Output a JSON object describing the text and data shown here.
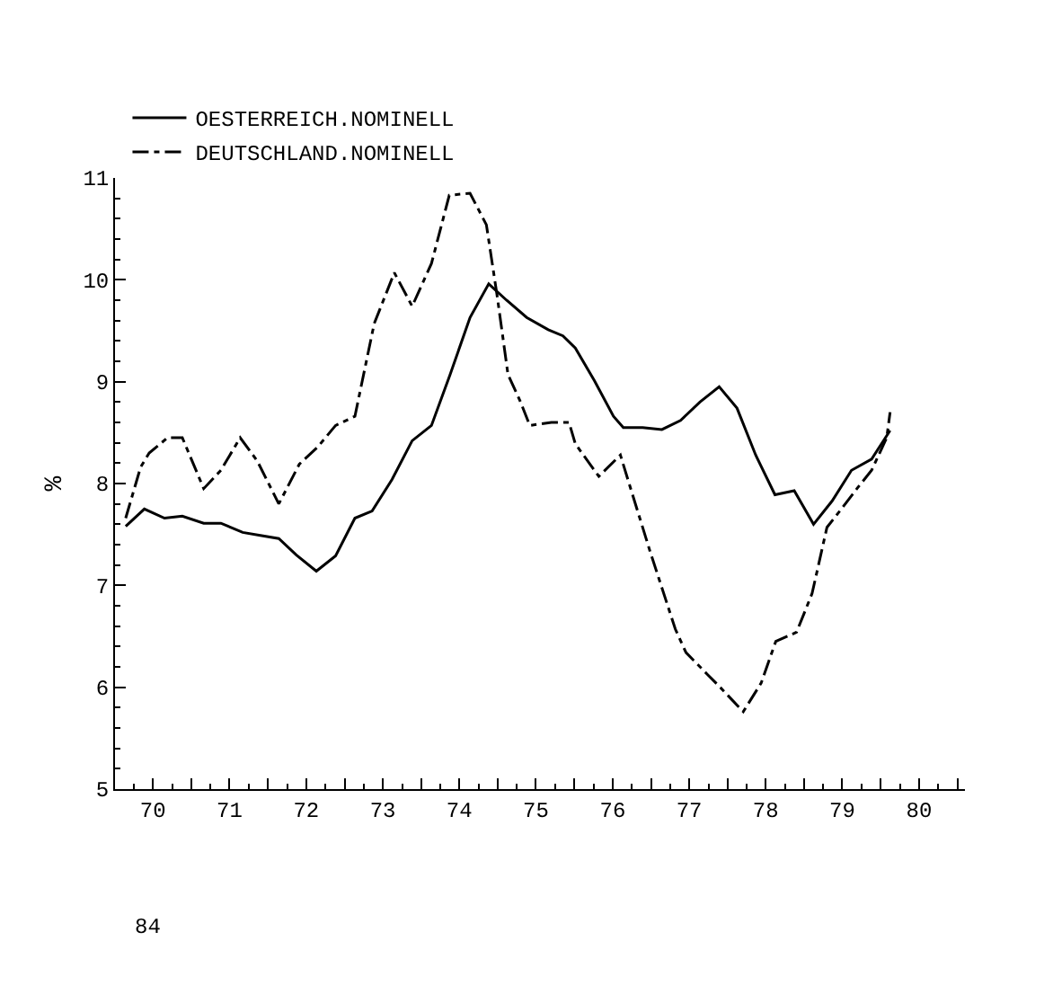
{
  "chart_data": {
    "type": "line",
    "ylabel": "%",
    "xlim": [
      "1970-01-01",
      "1981-02-05"
    ],
    "ylim": [
      5,
      11
    ],
    "yticks": [
      5,
      6,
      7,
      8,
      9,
      10,
      11
    ],
    "xticks": [
      {
        "value": "1970-07-01",
        "label": "70"
      },
      {
        "value": "1971-07-01",
        "label": "71"
      },
      {
        "value": "1972-07-01",
        "label": "72"
      },
      {
        "value": "1973-07-01",
        "label": "73"
      },
      {
        "value": "1974-07-01",
        "label": "74"
      },
      {
        "value": "1975-07-01",
        "label": "75"
      },
      {
        "value": "1976-07-01",
        "label": "76"
      },
      {
        "value": "1977-07-01",
        "label": "77"
      },
      {
        "value": "1978-07-01",
        "label": "78"
      },
      {
        "value": "1979-07-01",
        "label": "79"
      },
      {
        "value": "1980-07-01",
        "label": "80"
      },
      {
        "value": "1971-01-01",
        "label": null
      },
      {
        "value": "1972-01-01",
        "label": null
      },
      {
        "value": "1973-01-01",
        "label": null
      },
      {
        "value": "1974-01-01",
        "label": null
      },
      {
        "value": "1975-01-01",
        "label": null
      },
      {
        "value": "1976-01-01",
        "label": null
      },
      {
        "value": "1977-01-01",
        "label": null
      },
      {
        "value": "1978-01-01",
        "label": null
      },
      {
        "value": "1979-01-01",
        "label": null
      },
      {
        "value": "1980-01-01",
        "label": null
      },
      {
        "value": "1981-01-01",
        "label": null
      }
    ],
    "grid": false,
    "legend": "top left",
    "marker": "none",
    "annotations": [
      "84"
    ],
    "series": [
      {
        "name": "OESTERREICH.NOMINELL",
        "color": "#000000",
        "line_style": "solid",
        "x": [
          "1970-02-21",
          "1970-05-21",
          "1970-08-25",
          "1970-11-18",
          "1971-02-28",
          "1971-05-21",
          "1971-09-02",
          "1971-11-25",
          "1972-02-21",
          "1972-05-14",
          "1972-08-18",
          "1972-11-18",
          "1973-02-18",
          "1973-05-11",
          "1973-08-14",
          "1973-11-18",
          "1974-02-18",
          "1974-05-18",
          "1974-08-21",
          "1974-11-18",
          "1975-02-11",
          "1975-05-18",
          "1975-08-29",
          "1975-11-07",
          "1976-01-05",
          "1976-04-05",
          "1976-07-05",
          "1976-08-21",
          "1976-11-21",
          "1977-02-21",
          "1977-05-21",
          "1977-08-21",
          "1977-11-21",
          "1978-02-14",
          "1978-05-14",
          "1978-08-14",
          "1978-11-14",
          "1979-02-14",
          "1979-05-14",
          "1979-08-14",
          "1979-11-18",
          "1980-02-14"
        ],
        "values": [
          7.58,
          7.75,
          7.66,
          7.68,
          7.61,
          7.61,
          7.52,
          7.49,
          7.46,
          7.3,
          7.14,
          7.29,
          7.66,
          7.73,
          8.04,
          8.42,
          8.57,
          9.07,
          9.63,
          9.96,
          9.8,
          9.63,
          9.51,
          9.45,
          9.33,
          9.01,
          8.66,
          8.55,
          8.55,
          8.53,
          8.62,
          8.8,
          8.95,
          8.74,
          8.28,
          7.89,
          7.93,
          7.6,
          7.83,
          8.13,
          8.24,
          8.52
        ]
      },
      {
        "name": "DEUTSCHLAND.NOMINELL",
        "color": "#000000",
        "line_style": "dashed",
        "x": [
          "1970-02-21",
          "1970-05-03",
          "1970-06-13",
          "1970-09-09",
          "1970-11-18",
          "1971-02-28",
          "1971-05-21",
          "1971-08-21",
          "1971-11-11",
          "1972-02-21",
          "1972-05-29",
          "1972-08-25",
          "1972-11-18",
          "1973-02-18",
          "1973-05-21",
          "1973-08-25",
          "1973-11-18",
          "1974-02-18",
          "1974-05-14",
          "1974-08-21",
          "1974-11-07",
          "1974-12-27",
          "1975-02-18",
          "1975-04-19",
          "1975-06-02",
          "1975-09-13",
          "1975-12-06",
          "1976-01-05",
          "1976-04-26",
          "1976-08-07",
          "1976-09-16",
          "1976-12-27",
          "1977-04-26",
          "1977-06-16",
          "1977-09-24",
          "1977-11-21",
          "1978-03-16",
          "1978-06-09",
          "1978-08-18",
          "1978-11-25",
          "1979-02-07",
          "1979-04-19",
          "1979-06-27",
          "1979-09-09",
          "1979-11-18",
          "1980-01-29",
          "1980-02-14"
        ],
        "values": [
          7.66,
          8.16,
          8.3,
          8.45,
          8.45,
          7.95,
          8.13,
          8.45,
          8.22,
          7.8,
          8.19,
          8.36,
          8.57,
          8.66,
          9.57,
          10.07,
          9.74,
          10.16,
          10.83,
          10.85,
          10.54,
          9.86,
          9.07,
          8.8,
          8.57,
          8.6,
          8.6,
          8.39,
          8.07,
          8.28,
          8.01,
          7.33,
          6.57,
          6.34,
          6.13,
          6.01,
          5.76,
          6.04,
          6.45,
          6.54,
          6.92,
          7.57,
          7.75,
          7.95,
          8.13,
          8.45,
          8.7
        ]
      }
    ]
  }
}
